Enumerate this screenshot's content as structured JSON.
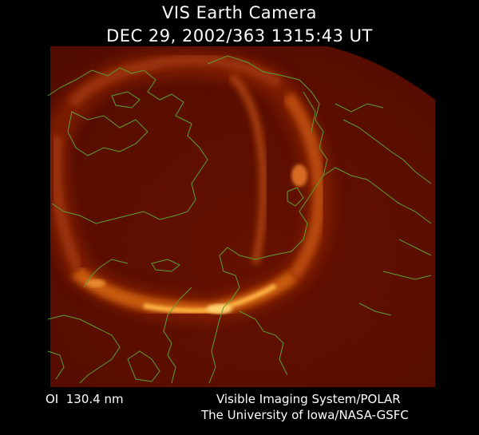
{
  "header": {
    "title": "VIS Earth Camera",
    "timestamp": "DEC 29, 2002/363 1315:43 UT"
  },
  "footer": {
    "filter": "OI  130.4 nm",
    "credit_line1": "Visible Imaging System/POLAR",
    "credit_line2": "The University of Iowa/NASA-GSFC"
  },
  "image": {
    "subject": "auroral-oval",
    "background_color": "#5a0e00",
    "aurora_color": "#ffb040",
    "coastline_color": "#5aa030"
  }
}
